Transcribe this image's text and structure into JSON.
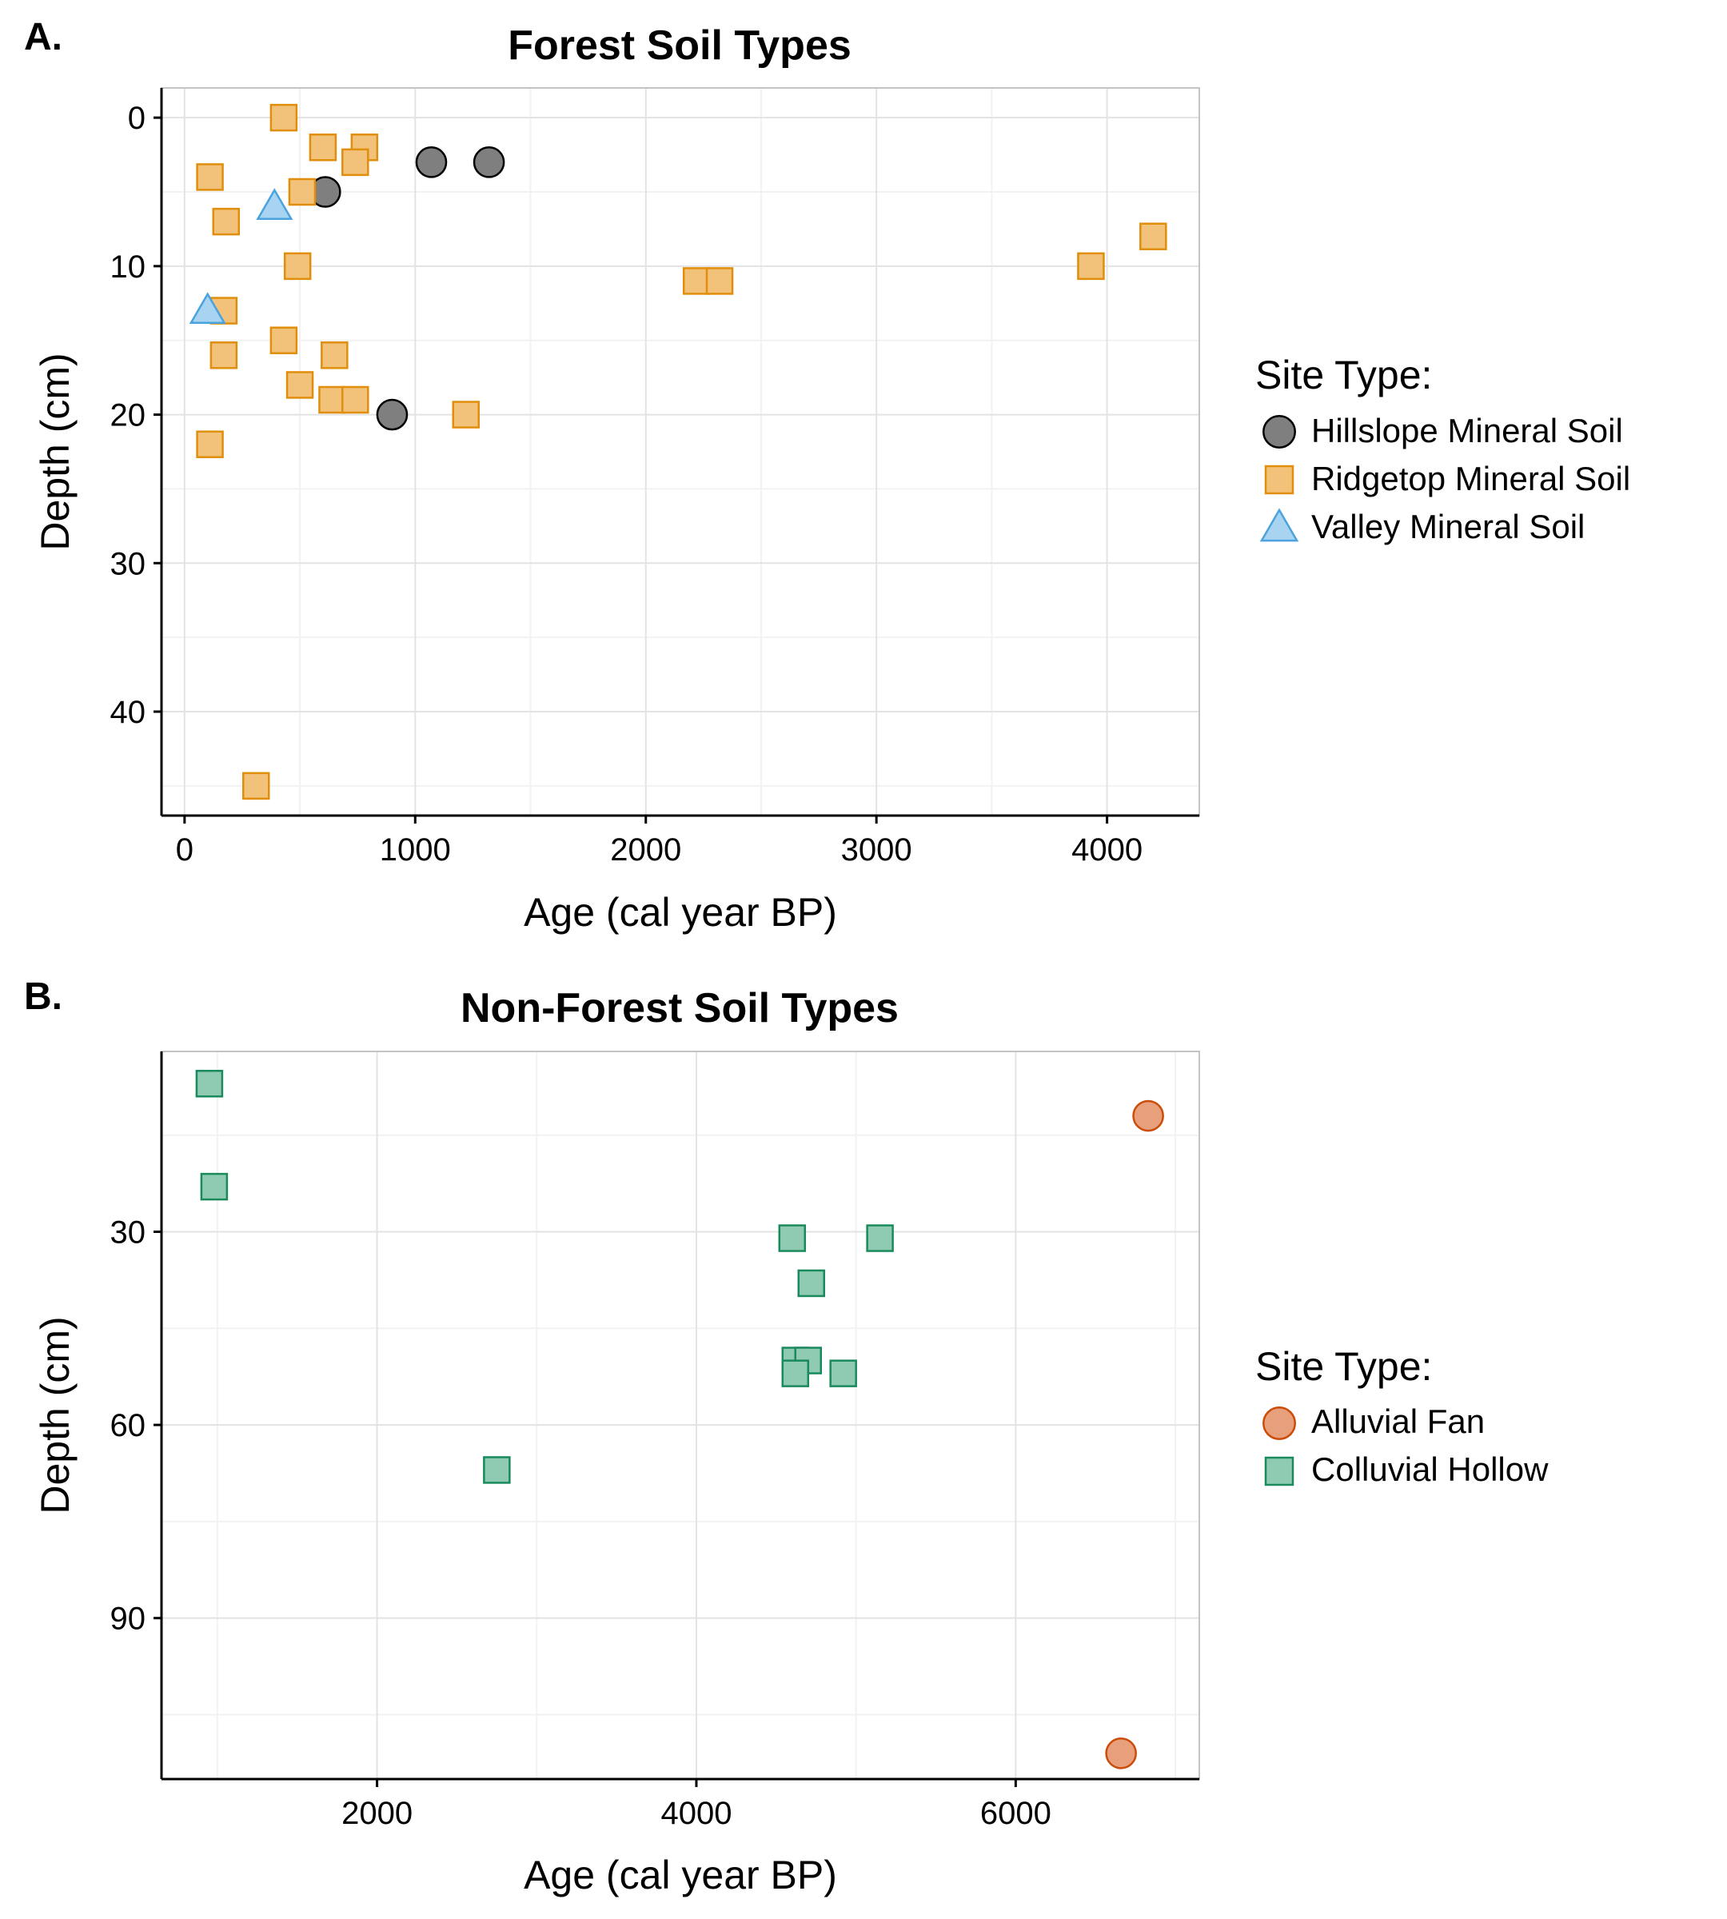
{
  "chart_data": [
    {
      "panel_label": "A.",
      "type": "scatter",
      "title": "Forest Soil Types",
      "xlabel": "Age (cal year BP)",
      "ylabel": "Depth (cm)",
      "xlim": [
        -100,
        4400
      ],
      "ylim": [
        47,
        -2
      ],
      "y_reversed": true,
      "xticks": [
        0,
        1000,
        2000,
        3000,
        4000
      ],
      "xminor": [
        500,
        1500,
        2500,
        3500
      ],
      "yticks": [
        0,
        10,
        20,
        30,
        40
      ],
      "yminor": [
        5,
        15,
        25,
        35,
        45
      ],
      "grid": true,
      "legend_title": "Site Type:",
      "legend_position": "right",
      "series": [
        {
          "name": "Hillslope Mineral Soil",
          "marker": "circle",
          "fill": "#7f7f7f",
          "stroke": "#000000",
          "points": [
            [
              610,
              5
            ],
            [
              1070,
              3
            ],
            [
              1320,
              3
            ],
            [
              900,
              20
            ]
          ]
        },
        {
          "name": "Ridgetop Mineral Soil",
          "marker": "square",
          "fill": "#f2c27b",
          "stroke": "#e08e0b",
          "points": [
            [
              430,
              0
            ],
            [
              600,
              2
            ],
            [
              780,
              2
            ],
            [
              740,
              3
            ],
            [
              110,
              4
            ],
            [
              510,
              5
            ],
            [
              180,
              7
            ],
            [
              490,
              10
            ],
            [
              2220,
              11
            ],
            [
              2320,
              11
            ],
            [
              3930,
              10
            ],
            [
              4200,
              8
            ],
            [
              170,
              13
            ],
            [
              430,
              15
            ],
            [
              170,
              16
            ],
            [
              650,
              16
            ],
            [
              500,
              18
            ],
            [
              640,
              19
            ],
            [
              740,
              19
            ],
            [
              1220,
              20
            ],
            [
              110,
              22
            ],
            [
              310,
              45
            ]
          ]
        },
        {
          "name": "Valley Mineral Soil",
          "marker": "triangle",
          "fill": "#a8d4f2",
          "stroke": "#4aa3df",
          "points": [
            [
              390,
              6
            ],
            [
              100,
              13
            ]
          ]
        }
      ]
    },
    {
      "panel_label": "B.",
      "type": "scatter",
      "title": "Non-Forest Soil Types",
      "xlabel": "Age (cal year BP)",
      "ylabel": "Depth (cm)",
      "xlim": [
        650,
        7150
      ],
      "ylim": [
        115,
        2
      ],
      "y_reversed": true,
      "xticks": [
        2000,
        4000,
        6000
      ],
      "xminor": [
        1000,
        3000,
        5000,
        7000
      ],
      "yticks": [
        30,
        60,
        90
      ],
      "yminor": [
        15,
        45,
        75,
        105
      ],
      "grid": true,
      "legend_title": "Site Type:",
      "legend_position": "right",
      "series": [
        {
          "name": "Alluvial Fan",
          "marker": "circle",
          "fill": "#e8a07c",
          "stroke": "#cc4c0a",
          "points": [
            [
              6830,
              12
            ],
            [
              6660,
              111
            ]
          ]
        },
        {
          "name": "Colluvial Hollow",
          "marker": "square",
          "fill": "#8fcbb2",
          "stroke": "#1a8a5c",
          "points": [
            [
              950,
              7
            ],
            [
              980,
              23
            ],
            [
              4600,
              31
            ],
            [
              5150,
              31
            ],
            [
              4720,
              38
            ],
            [
              4620,
              50
            ],
            [
              4700,
              50
            ],
            [
              4620,
              52
            ],
            [
              4920,
              52
            ],
            [
              2750,
              67
            ]
          ]
        }
      ]
    }
  ]
}
